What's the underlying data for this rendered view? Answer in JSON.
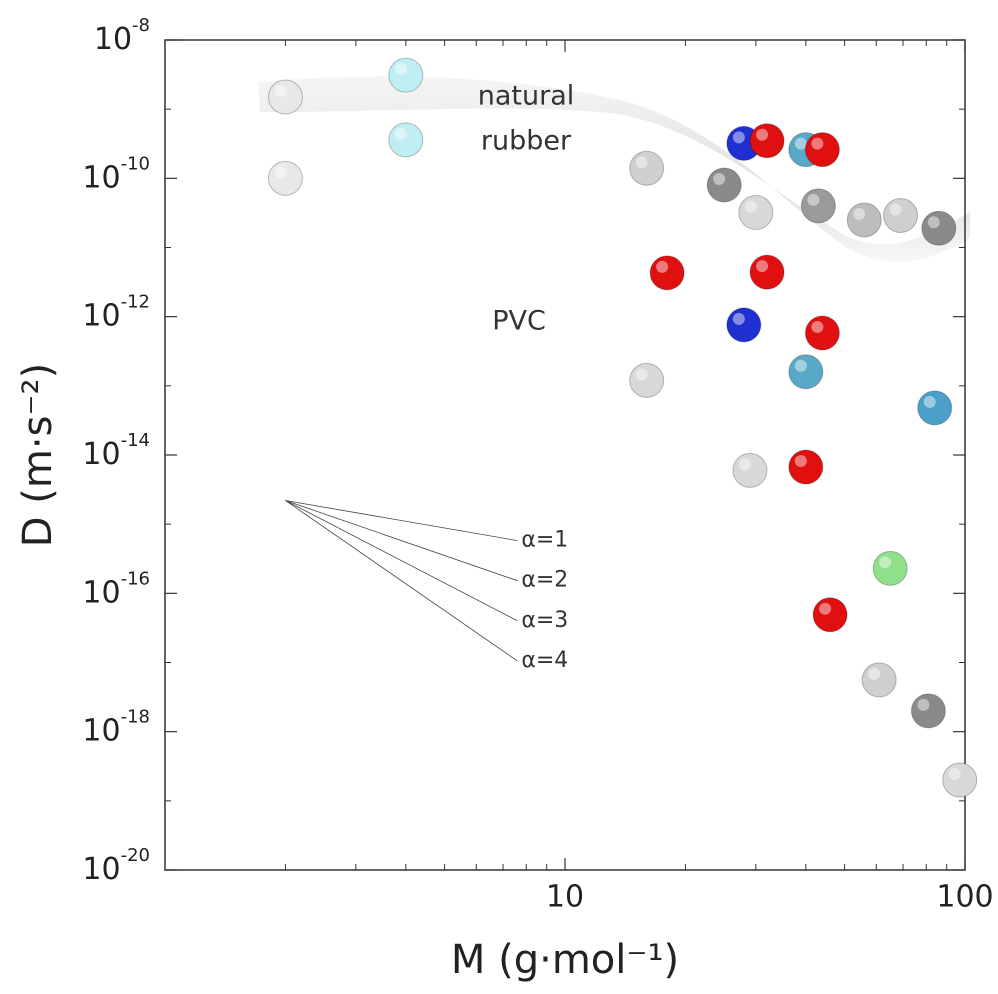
{
  "chart_data": {
    "type": "scatter",
    "x_label": "M (g·mol⁻¹)",
    "y_label": "D (m·s⁻²)",
    "x_log": true,
    "y_log": true,
    "xlim": [
      1,
      100
    ],
    "ylim": [
      1e-20,
      1e-08
    ],
    "xticks": [
      10,
      100
    ],
    "x_minor_ticks": [
      2,
      3,
      4,
      5,
      6,
      7,
      8,
      9,
      20,
      30,
      40,
      50,
      60,
      70,
      80,
      90
    ],
    "yticks": [
      {
        "value": 1e-08,
        "label": "10-8"
      },
      {
        "value": 1e-10,
        "label": "10-10"
      },
      {
        "value": 1e-12,
        "label": "10-12"
      },
      {
        "value": 1e-14,
        "label": "10-14"
      },
      {
        "value": 1e-16,
        "label": "10-16"
      },
      {
        "value": 1e-18,
        "label": "10-18"
      },
      {
        "value": 1e-20,
        "label": "10-20"
      }
    ],
    "y_minor_ticks": [
      1e-09,
      1e-11,
      1e-13,
      1e-15,
      1e-17,
      1e-19
    ],
    "annotations": [
      "natural",
      "rubber",
      "PVC"
    ],
    "x": [
      2,
      2,
      4,
      4,
      16,
      28,
      32,
      40,
      44,
      25,
      30,
      43,
      56,
      69,
      86,
      18,
      32,
      28,
      44,
      16,
      40,
      84,
      29,
      40,
      65,
      46,
      61,
      81,
      97
    ],
    "values": [
      1.5e-09,
      1e-10,
      3.1e-09,
      3.6e-10,
      1.4e-10,
      3.2e-10,
      3.5e-10,
      2.6e-10,
      2.6e-10,
      8e-11,
      3.2e-11,
      4e-11,
      2.5e-11,
      2.9e-11,
      1.9e-11,
      4.3e-12,
      4.4e-12,
      7.6e-13,
      5.8e-13,
      1.2e-13,
      1.6e-13,
      4.8e-14,
      6e-15,
      6.7e-15,
      2.3e-16,
      4.9e-17,
      5.6e-18,
      2e-18,
      2e-19
    ],
    "colors": [
      "#e8e8e8",
      "#e8e8e8",
      "#bfeff2",
      "#bfeff2",
      "#cfcfcf",
      "#1f2fd0",
      "#e01010",
      "#5aa8c8",
      "#e01010",
      "#8a8a8a",
      "#d8d8d8",
      "#9a9a9a",
      "#bdbdbd",
      "#cfcfcf",
      "#8a8a8a",
      "#e01010",
      "#e01010",
      "#1f2fd0",
      "#e01010",
      "#d8d8d8",
      "#5aa8c8",
      "#4aa0c8",
      "#d8d8d8",
      "#e01010",
      "#8ee08a",
      "#e01010",
      "#cfcfcf",
      "#8a8a8a",
      "#d8d8d8"
    ],
    "reference_lines": {
      "origin_x": 2,
      "origin_y": 2.2e-15,
      "end_x": 7.6,
      "lines": [
        {
          "label": "α=1",
          "alpha": 1
        },
        {
          "label": "α=2",
          "alpha": 2
        },
        {
          "label": "α=3",
          "alpha": 3
        },
        {
          "label": "α=4",
          "alpha": 4
        }
      ]
    }
  }
}
